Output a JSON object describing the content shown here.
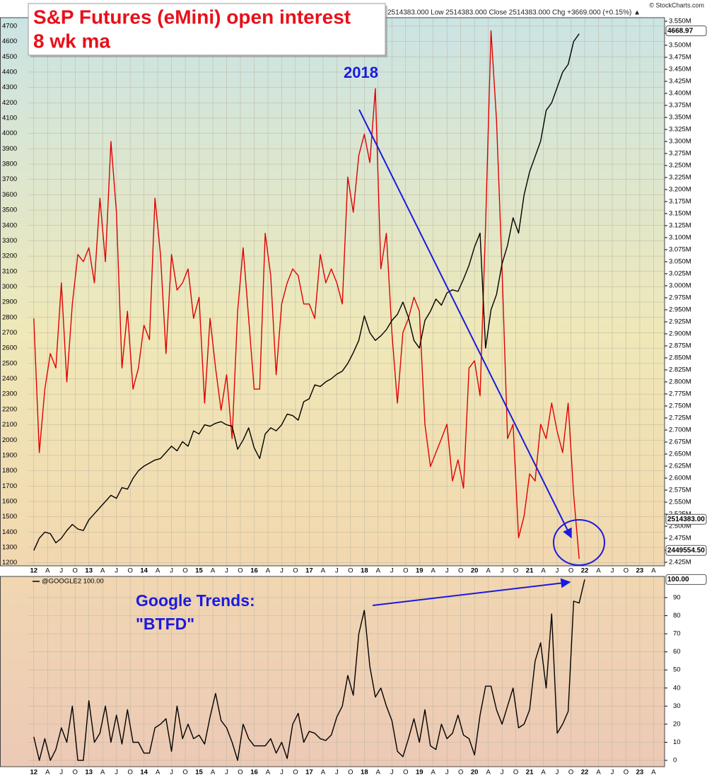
{
  "chart_data": [
    {
      "type": "line",
      "title": "S&P Futures (eMini) open interest",
      "subtitle": "8 wk ma",
      "header": "2514383.000  Low 2514383.000  Close 2514383.000  Chg +3669.000 (+0.15%) ▲",
      "credit": "© StockCharts.com",
      "annotations": [
        "2018"
      ],
      "x": [
        2012,
        2012.1,
        2012.2,
        2012.3,
        2012.4,
        2012.5,
        2012.6,
        2012.7,
        2012.8,
        2012.9,
        2013,
        2013.1,
        2013.2,
        2013.3,
        2013.4,
        2013.5,
        2013.6,
        2013.7,
        2013.8,
        2013.9,
        2014,
        2014.1,
        2014.2,
        2014.3,
        2014.4,
        2014.5,
        2014.6,
        2014.7,
        2014.8,
        2014.9,
        2015,
        2015.1,
        2015.2,
        2015.3,
        2015.4,
        2015.5,
        2015.6,
        2015.7,
        2015.8,
        2015.9,
        2016,
        2016.1,
        2016.2,
        2016.3,
        2016.4,
        2016.5,
        2016.6,
        2016.7,
        2016.8,
        2016.9,
        2017,
        2017.1,
        2017.2,
        2017.3,
        2017.4,
        2017.5,
        2017.6,
        2017.7,
        2017.8,
        2017.9,
        2018,
        2018.1,
        2018.2,
        2018.3,
        2018.4,
        2018.5,
        2018.6,
        2018.7,
        2018.8,
        2018.9,
        2019,
        2019.1,
        2019.2,
        2019.3,
        2019.4,
        2019.5,
        2019.6,
        2019.7,
        2019.8,
        2019.9,
        2020,
        2020.1,
        2020.2,
        2020.3,
        2020.4,
        2020.5,
        2020.6,
        2020.7,
        2020.8,
        2020.9,
        2021,
        2021.1,
        2021.2,
        2021.3,
        2021.4,
        2021.5,
        2021.6,
        2021.7,
        2021.8,
        2021.9
      ],
      "xlim": [
        2011.9,
        2023.45
      ],
      "xticks": [
        {
          "value": 2012,
          "label": "12"
        },
        {
          "value": 2012.25,
          "label": "A"
        },
        {
          "value": 2012.5,
          "label": "J"
        },
        {
          "value": 2012.75,
          "label": "O"
        },
        {
          "value": 2013,
          "label": "13"
        },
        {
          "value": 2013.25,
          "label": "A"
        },
        {
          "value": 2013.5,
          "label": "J"
        },
        {
          "value": 2013.75,
          "label": "O"
        },
        {
          "value": 2014,
          "label": "14"
        },
        {
          "value": 2014.25,
          "label": "A"
        },
        {
          "value": 2014.5,
          "label": "J"
        },
        {
          "value": 2014.75,
          "label": "O"
        },
        {
          "value": 2015,
          "label": "15"
        },
        {
          "value": 2015.25,
          "label": "A"
        },
        {
          "value": 2015.5,
          "label": "J"
        },
        {
          "value": 2015.75,
          "label": "O"
        },
        {
          "value": 2016,
          "label": "16"
        },
        {
          "value": 2016.25,
          "label": "A"
        },
        {
          "value": 2016.5,
          "label": "J"
        },
        {
          "value": 2016.75,
          "label": "O"
        },
        {
          "value": 2017,
          "label": "17"
        },
        {
          "value": 2017.25,
          "label": "A"
        },
        {
          "value": 2017.5,
          "label": "J"
        },
        {
          "value": 2017.75,
          "label": "O"
        },
        {
          "value": 2018,
          "label": "18"
        },
        {
          "value": 2018.25,
          "label": "A"
        },
        {
          "value": 2018.5,
          "label": "J"
        },
        {
          "value": 2018.75,
          "label": "O"
        },
        {
          "value": 2019,
          "label": "19"
        },
        {
          "value": 2019.25,
          "label": "A"
        },
        {
          "value": 2019.5,
          "label": "J"
        },
        {
          "value": 2019.75,
          "label": "O"
        },
        {
          "value": 2020,
          "label": "20"
        },
        {
          "value": 2020.25,
          "label": "A"
        },
        {
          "value": 2020.5,
          "label": "J"
        },
        {
          "value": 2020.75,
          "label": "O"
        },
        {
          "value": 2021,
          "label": "21"
        },
        {
          "value": 2021.25,
          "label": "A"
        },
        {
          "value": 2021.5,
          "label": "J"
        },
        {
          "value": 2021.75,
          "label": "O"
        },
        {
          "value": 2022,
          "label": "22"
        },
        {
          "value": 2022.25,
          "label": "A"
        },
        {
          "value": 2022.5,
          "label": "J"
        },
        {
          "value": 2022.75,
          "label": "O"
        },
        {
          "value": 2023,
          "label": "23"
        },
        {
          "value": 2023.25,
          "label": "A"
        }
      ],
      "ylim": [
        1180,
        4755
      ],
      "yticks": [
        1200,
        1300,
        1400,
        1500,
        1600,
        1700,
        1800,
        1900,
        2000,
        2100,
        2200,
        2300,
        2400,
        2500,
        2600,
        2700,
        2800,
        2900,
        3000,
        3100,
        3200,
        3300,
        3400,
        3500,
        3600,
        3700,
        3800,
        3900,
        4000,
        4100,
        4200,
        4300,
        4400,
        4500,
        4600,
        4700
      ],
      "y2lim": [
        2417600,
        3557400
      ],
      "y2ticks": [
        {
          "value": 2425000,
          "label": "2.425M"
        },
        {
          "value": 2450000,
          "label": "2.450M"
        },
        {
          "value": 2475000,
          "label": "2.475M"
        },
        {
          "value": 2500000,
          "label": "2.500M"
        },
        {
          "value": 2525000,
          "label": "2.525M"
        },
        {
          "value": 2550000,
          "label": "2.550M"
        },
        {
          "value": 2575000,
          "label": "2.575M"
        },
        {
          "value": 2600000,
          "label": "2.600M"
        },
        {
          "value": 2625000,
          "label": "2.625M"
        },
        {
          "value": 2650000,
          "label": "2.650M"
        },
        {
          "value": 2675000,
          "label": "2.675M"
        },
        {
          "value": 2700000,
          "label": "2.700M"
        },
        {
          "value": 2725000,
          "label": "2.725M"
        },
        {
          "value": 2750000,
          "label": "2.750M"
        },
        {
          "value": 2775000,
          "label": "2.775M"
        },
        {
          "value": 2800000,
          "label": "2.800M"
        },
        {
          "value": 2825000,
          "label": "2.825M"
        },
        {
          "value": 2850000,
          "label": "2.850M"
        },
        {
          "value": 2875000,
          "label": "2.875M"
        },
        {
          "value": 2900000,
          "label": "2.900M"
        },
        {
          "value": 2925000,
          "label": "2.925M"
        },
        {
          "value": 2950000,
          "label": "2.950M"
        },
        {
          "value": 2975000,
          "label": "2.975M"
        },
        {
          "value": 3000000,
          "label": "3.000M"
        },
        {
          "value": 3025000,
          "label": "3.025M"
        },
        {
          "value": 3050000,
          "label": "3.050M"
        },
        {
          "value": 3075000,
          "label": "3.075M"
        },
        {
          "value": 3100000,
          "label": "3.100M"
        },
        {
          "value": 3125000,
          "label": "3.125M"
        },
        {
          "value": 3150000,
          "label": "3.150M"
        },
        {
          "value": 3175000,
          "label": "3.175M"
        },
        {
          "value": 3200000,
          "label": "3.200M"
        },
        {
          "value": 3225000,
          "label": "3.225M"
        },
        {
          "value": 3250000,
          "label": "3.250M"
        },
        {
          "value": 3275000,
          "label": "3.275M"
        },
        {
          "value": 3300000,
          "label": "3.300M"
        },
        {
          "value": 3325000,
          "label": "3.325M"
        },
        {
          "value": 3350000,
          "label": "3.350M"
        },
        {
          "value": 3375000,
          "label": "3.375M"
        },
        {
          "value": 3400000,
          "label": "3.400M"
        },
        {
          "value": 3425000,
          "label": "3.425M"
        },
        {
          "value": 3450000,
          "label": "3.450M"
        },
        {
          "value": 3475000,
          "label": "3.475M"
        },
        {
          "value": 3500000,
          "label": "3.500M"
        },
        {
          "value": 3525000,
          "label": "3.525M"
        },
        {
          "value": 3550000,
          "label": "3.550M"
        }
      ],
      "grid": true,
      "series": [
        {
          "color": "#e00000",
          "axis": "y2",
          "values": [
            2932000,
            2653000,
            2785000,
            2859000,
            2829000,
            3006000,
            2800000,
            2962000,
            3065000,
            3050000,
            3079000,
            3006000,
            3182000,
            3050000,
            3300000,
            3153000,
            2829000,
            2947000,
            2785000,
            2829000,
            2918000,
            2888000,
            3182000,
            3065000,
            2859000,
            3065000,
            2991000,
            3006000,
            3035000,
            2932000,
            2976000,
            2756000,
            2932000,
            2829000,
            2741000,
            2815000,
            2682000,
            2947000,
            3079000,
            2932000,
            2785000,
            2785000,
            3109000,
            3021000,
            2815000,
            2962000,
            3006000,
            3035000,
            3021000,
            2962000,
            2962000,
            2932000,
            3065000,
            3006000,
            3035000,
            3006000,
            2962000,
            3226000,
            3153000,
            3271000,
            3315000,
            3256000,
            3410000,
            3035000,
            3109000,
            2903000,
            2756000,
            2903000,
            2932000,
            2976000,
            2947000,
            2712000,
            2624000,
            2653000,
            2682000,
            2712000,
            2594000,
            2638000,
            2579000,
            2829000,
            2844000,
            2771000,
            3124000,
            3530000,
            3344000,
            3035000,
            2682000,
            2712000,
            2476000,
            2521000,
            2609000,
            2594000,
            2712000,
            2682000,
            2756000,
            2697000,
            2653000,
            2756000,
            2565000,
            2432000
          ]
        },
        {
          "color": "#000000",
          "axis": "y",
          "values": [
            1280,
            1360,
            1400,
            1390,
            1330,
            1360,
            1410,
            1450,
            1420,
            1410,
            1480,
            1520,
            1560,
            1600,
            1640,
            1620,
            1690,
            1680,
            1750,
            1800,
            1830,
            1850,
            1870,
            1880,
            1920,
            1960,
            1930,
            1990,
            1960,
            2060,
            2040,
            2100,
            2090,
            2110,
            2120,
            2100,
            2090,
            1940,
            2000,
            2080,
            1950,
            1880,
            2040,
            2080,
            2060,
            2100,
            2170,
            2160,
            2130,
            2250,
            2270,
            2360,
            2350,
            2380,
            2400,
            2430,
            2450,
            2500,
            2570,
            2650,
            2810,
            2700,
            2650,
            2680,
            2720,
            2780,
            2820,
            2900,
            2800,
            2650,
            2600,
            2780,
            2840,
            2920,
            2880,
            2960,
            2980,
            2970,
            3050,
            3140,
            3260,
            3350,
            2600,
            2850,
            2950,
            3150,
            3270,
            3450,
            3350,
            3600,
            3750,
            3850,
            3950,
            4150,
            4200,
            4300,
            4400,
            4450,
            4600,
            4650
          ]
        }
      ],
      "last_labels": [
        {
          "value": 4668.97,
          "label": "4668.97",
          "axis": "y",
          "color": "#000000"
        },
        {
          "value": 2514383,
          "label": "2514383.00",
          "axis": "y2",
          "color": "#000000"
        },
        {
          "value": 2449554.5,
          "label": "2449554.50",
          "axis": "y2",
          "color": "#e00000"
        }
      ]
    },
    {
      "type": "line",
      "annotations": [
        "Google Trends:",
        "\"BTFD\""
      ],
      "x": [
        2012,
        2012.1,
        2012.2,
        2012.3,
        2012.4,
        2012.5,
        2012.6,
        2012.7,
        2012.8,
        2012.9,
        2013,
        2013.1,
        2013.2,
        2013.3,
        2013.4,
        2013.5,
        2013.6,
        2013.7,
        2013.8,
        2013.9,
        2014,
        2014.1,
        2014.2,
        2014.3,
        2014.4,
        2014.5,
        2014.6,
        2014.7,
        2014.8,
        2014.9,
        2015,
        2015.1,
        2015.2,
        2015.3,
        2015.4,
        2015.5,
        2015.6,
        2015.7,
        2015.8,
        2015.9,
        2016,
        2016.1,
        2016.2,
        2016.3,
        2016.4,
        2016.5,
        2016.6,
        2016.7,
        2016.8,
        2016.9,
        2017,
        2017.1,
        2017.2,
        2017.3,
        2017.4,
        2017.5,
        2017.6,
        2017.7,
        2017.8,
        2017.9,
        2018,
        2018.1,
        2018.2,
        2018.3,
        2018.4,
        2018.5,
        2018.6,
        2018.7,
        2018.8,
        2018.9,
        2019,
        2019.1,
        2019.2,
        2019.3,
        2019.4,
        2019.5,
        2019.6,
        2019.7,
        2019.8,
        2019.9,
        2020,
        2020.1,
        2020.2,
        2020.3,
        2020.4,
        2020.5,
        2020.6,
        2020.7,
        2020.8,
        2020.9,
        2021,
        2021.1,
        2021.2,
        2021.3,
        2021.4,
        2021.5,
        2021.6,
        2021.7,
        2021.8,
        2021.9,
        2022
      ],
      "xlim": [
        2011.9,
        2023.45
      ],
      "ylim": [
        -3.5,
        101.7
      ],
      "yticks": [
        0,
        10,
        20,
        30,
        40,
        50,
        60,
        70,
        80,
        90
      ],
      "grid": true,
      "series": [
        {
          "name": "@GOOGLE2 100.00",
          "color": "#000000",
          "axis": "y",
          "values": [
            13,
            0,
            12,
            0,
            6,
            18,
            10,
            30,
            0,
            0,
            33,
            10,
            15,
            30,
            10,
            25,
            9,
            28,
            10,
            10,
            4,
            4,
            18,
            20,
            23,
            5,
            30,
            12,
            20,
            12,
            14,
            9,
            24,
            37,
            22,
            18,
            10,
            0,
            20,
            12,
            8,
            8,
            8,
            12,
            4,
            10,
            1,
            20,
            26,
            10,
            16,
            15,
            12,
            11,
            14,
            24,
            30,
            47,
            36,
            70,
            83,
            52,
            35,
            40,
            30,
            22,
            5,
            2,
            12,
            23,
            10,
            28,
            8,
            6,
            20,
            12,
            15,
            25,
            14,
            12,
            3,
            25,
            41,
            41,
            28,
            20,
            30,
            40,
            18,
            20,
            28,
            55,
            65,
            40,
            81,
            15,
            20,
            27,
            88,
            87,
            100
          ]
        }
      ],
      "last_labels": [
        {
          "value": 100,
          "label": "100.00",
          "axis": "y",
          "color": "#000000"
        }
      ]
    }
  ]
}
